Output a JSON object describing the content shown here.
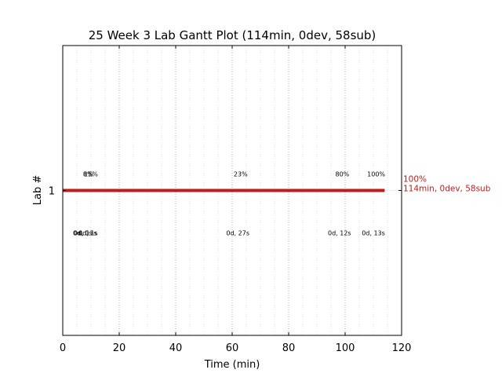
{
  "chart_data": {
    "type": "gantt",
    "title": "25 Week 3 Lab Gantt Plot (114min, 0dev, 58sub)",
    "xlabel": "Time (min)",
    "ylabel": "Lab #",
    "xlim": [
      0,
      120
    ],
    "xticks": [
      0,
      20,
      40,
      60,
      80,
      100,
      120
    ],
    "xtick_labels": [
      "0",
      "20",
      "40",
      "60",
      "80",
      "100",
      "120"
    ],
    "ylim": [
      0.5,
      1.5
    ],
    "yticks": [
      1
    ],
    "ytick_labels": [
      "1"
    ],
    "grid": "x-dotted",
    "bar_color": "#bf1d1d",
    "bars": [
      {
        "y": 1,
        "start": 0,
        "end": 114
      }
    ],
    "percent_labels": [
      {
        "x": 9,
        "text": "0%"
      },
      {
        "x": 9,
        "text": "8%"
      },
      {
        "x": 10,
        "text": "15%"
      },
      {
        "x": 63,
        "text": "23%"
      },
      {
        "x": 99,
        "text": "80%"
      },
      {
        "x": 111,
        "text": "100%"
      }
    ],
    "duration_labels": [
      {
        "x": 7,
        "text": "0d, 0s"
      },
      {
        "x": 8,
        "text": "0d, 13s"
      },
      {
        "x": 9,
        "text": "0d, 1s"
      },
      {
        "x": 62,
        "text": "0d, 27s"
      },
      {
        "x": 98,
        "text": "0d, 12s"
      },
      {
        "x": 110,
        "text": "0d, 13s"
      }
    ],
    "end_annotation": {
      "x": 114,
      "line1": "100%",
      "line2": "114min, 0dev, 58sub"
    }
  }
}
